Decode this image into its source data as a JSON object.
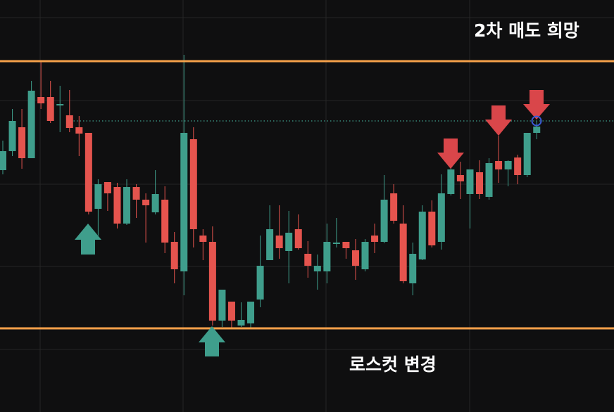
{
  "chart_data": {
    "type": "candlestick",
    "ylim": [
      0,
      586
    ],
    "up_color": "#3f9e8c",
    "down_color": "#e5544e",
    "open": [
      344,
      371,
      405,
      361,
      448,
      448,
      436,
      422,
      405,
      397,
      289,
      327,
      320,
      268,
      320,
      302,
      284,
      302,
      242,
      200,
      388,
      251,
      242,
      130,
      157,
      123,
      126,
      160,
      216,
      251,
      229,
      260,
      225,
      200,
      200,
      239,
      242,
      230,
      203,
      251,
      242,
      311,
      268,
      183,
      217,
      285,
      242,
      310,
      337,
      310,
      341,
      306,
      357,
      345,
      362,
      337,
      397
    ],
    "high": [
      386,
      431,
      431,
      471,
      498,
      471,
      464,
      458,
      421,
      397,
      331,
      327,
      326,
      331,
      324,
      311,
      344,
      321,
      256,
      508,
      405,
      260,
      264,
      174,
      157,
      156,
      157,
      251,
      294,
      294,
      286,
      281,
      243,
      224,
      268,
      276,
      242,
      246,
      246,
      268,
      337,
      324,
      294,
      241,
      294,
      301,
      338,
      356,
      356,
      345,
      358,
      361,
      393,
      358,
      366,
      397,
      414
    ],
    "low": [
      338,
      364,
      346,
      361,
      431,
      411,
      398,
      398,
      364,
      281,
      251,
      286,
      261,
      266,
      276,
      241,
      281,
      226,
      183,
      166,
      234,
      216,
      123,
      121,
      118,
      121,
      118,
      149,
      216,
      218,
      183,
      231,
      191,
      174,
      183,
      234,
      218,
      188,
      200,
      226,
      240,
      268,
      183,
      166,
      216,
      234,
      231,
      308,
      303,
      261,
      303,
      302,
      326,
      321,
      324,
      334,
      388
    ],
    "close": [
      371,
      414,
      361,
      457,
      439,
      414,
      438,
      404,
      396,
      285,
      324,
      311,
      268,
      320,
      302,
      294,
      310,
      241,
      203,
      397,
      260,
      242,
      130,
      174,
      130,
      131,
      157,
      208,
      260,
      233,
      255,
      233,
      208,
      208,
      242,
      241,
      233,
      208,
      242,
      242,
      302,
      272,
      186,
      225,
      285,
      237,
      311,
      345,
      328,
      345,
      310,
      354,
      345,
      357,
      337,
      397,
      406
    ],
    "hlines": [
      {
        "value": 499,
        "color": "#f5a04a"
      },
      {
        "value": 119,
        "color": "#f5a04a"
      }
    ],
    "dotted_line": {
      "value": 414,
      "color": "#3f9e8c"
    },
    "annotations": [
      {
        "text": "2차 매도 희망"
      },
      {
        "text": "로스컷 변경"
      }
    ]
  }
}
